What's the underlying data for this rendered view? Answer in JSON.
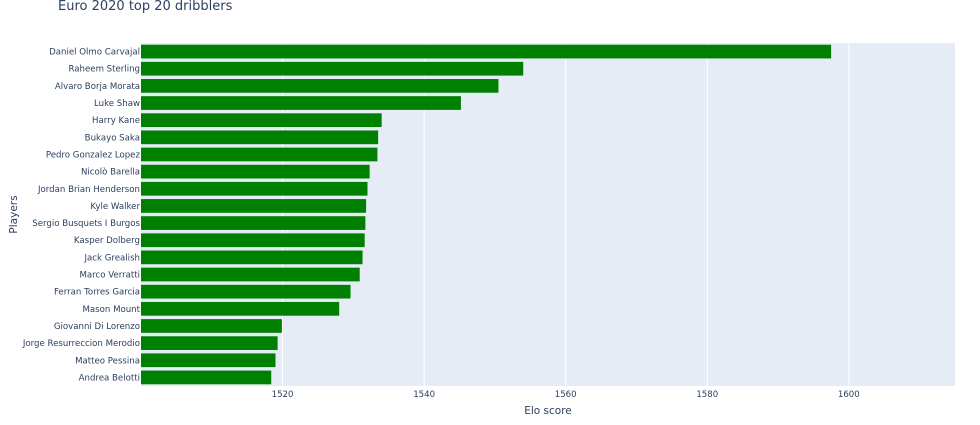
{
  "chart_data": {
    "type": "bar",
    "orientation": "horizontal",
    "title": "Euro 2020 top 20 dribblers",
    "xlabel": "Elo score",
    "ylabel": "Players",
    "xlim": [
      1500,
      1615
    ],
    "xticks": [
      1520,
      1540,
      1560,
      1580,
      1600
    ],
    "grid": true,
    "bar_color": "#008000",
    "plot_bg_color": "#e5ecf6",
    "categories": [
      "Daniel Olmo Carvajal",
      "Raheem Sterling",
      "Alvaro Borja Morata",
      "Luke Shaw",
      "Harry Kane",
      "Bukayo Saka",
      "Pedro Gonzalez Lopez",
      "Nicolò Barella",
      "Jordan Brian Henderson",
      "Kyle Walker",
      "Sergio Busquets I Burgos",
      "Kasper Dolberg",
      "Jack Grealish",
      "Marco Verratti",
      "Ferran Torres Garcia",
      "Mason Mount",
      "Giovanni Di Lorenzo",
      "Jorge Resurreccion Merodio",
      "Matteo Pessina",
      "Andrea Belotti"
    ],
    "values": [
      1597.5,
      1554.0,
      1550.5,
      1545.2,
      1534.0,
      1533.5,
      1533.4,
      1532.3,
      1532.0,
      1531.8,
      1531.7,
      1531.6,
      1531.3,
      1530.9,
      1529.6,
      1528.0,
      1519.9,
      1519.3,
      1519.0,
      1518.4
    ]
  }
}
